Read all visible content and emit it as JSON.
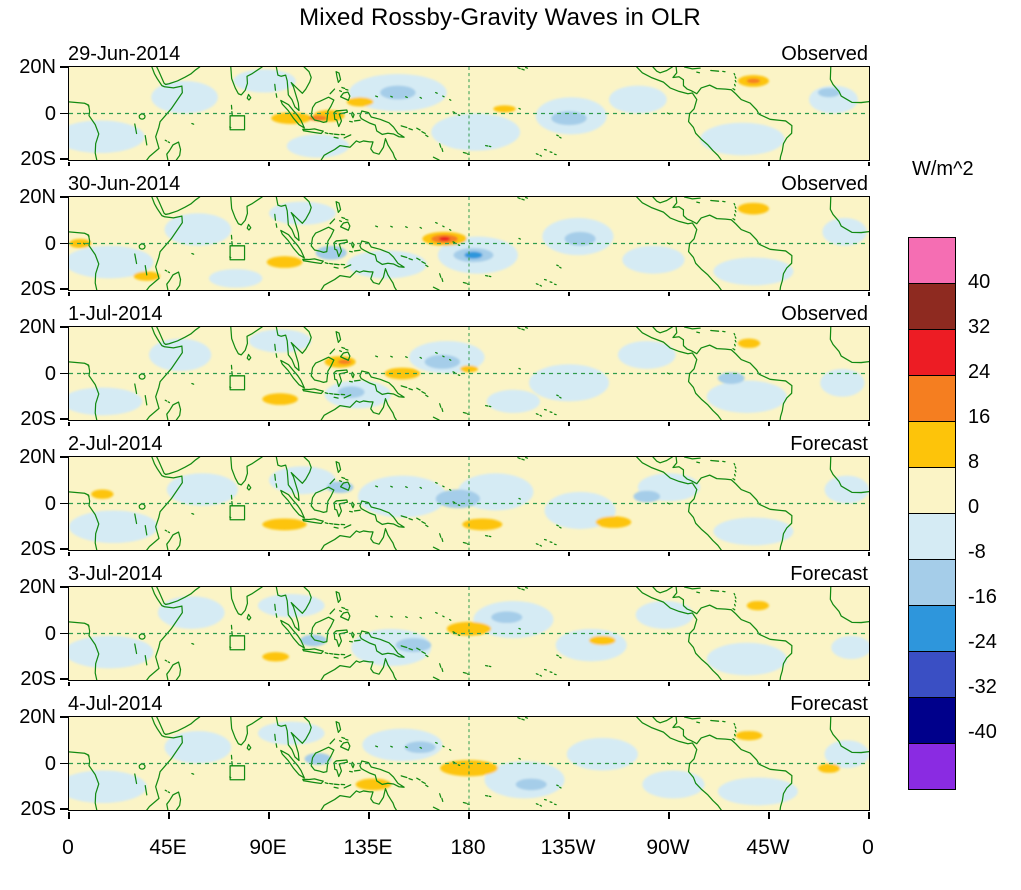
{
  "chart_data": {
    "type": "heatmap",
    "title": "Mixed Rossby-Gravity Waves in OLR",
    "x_axis": {
      "labels": [
        "0",
        "45E",
        "90E",
        "135E",
        "180",
        "135W",
        "90W",
        "45W",
        "0"
      ],
      "lon_range": [
        0,
        360
      ]
    },
    "y_axis": {
      "labels": [
        "20N",
        "0",
        "20S"
      ],
      "lat_range": [
        20,
        -20
      ]
    },
    "colorbar": {
      "units_label": "W/m^2",
      "tick_labels": [
        "40",
        "32",
        "24",
        "16",
        "8",
        "0",
        "-8",
        "-16",
        "-24",
        "-32",
        "-40"
      ],
      "thresholds": [
        -40,
        -32,
        -24,
        -16,
        -8,
        0,
        8,
        16,
        24,
        32,
        40
      ],
      "band_colors_low_to_high": [
        "#8A2BE2",
        "#00008B",
        "#3A4FC4",
        "#2E96DC",
        "#A5CDE9",
        "#D5EBF4",
        "#FBF4C6",
        "#FDC40A",
        "#F57E20",
        "#ED1C24",
        "#8E2A20",
        "#F56EB3"
      ]
    },
    "map_style": {
      "coast_color": "#128A12",
      "equator_color": "#2E9B4E",
      "grid_dashed": true,
      "reference_meridian": 180
    },
    "panels": [
      {
        "date": "29-Jun-2014",
        "kind": "Observed",
        "blobs_lon_lat_rx_ry_value": [
          [
            14,
            -10,
            20,
            7,
            -4
          ],
          [
            52,
            7,
            15,
            7,
            -4
          ],
          [
            88,
            14,
            14,
            5,
            -4
          ],
          [
            112,
            -14,
            14,
            5,
            -4
          ],
          [
            148,
            9,
            22,
            8,
            -4
          ],
          [
            183,
            -8,
            20,
            8,
            -4
          ],
          [
            226,
            -1,
            16,
            8,
            -4
          ],
          [
            256,
            6,
            13,
            6,
            -4
          ],
          [
            303,
            -11,
            19,
            7,
            -4
          ],
          [
            344,
            6,
            11,
            6,
            -4
          ],
          [
            148,
            9,
            8,
            3,
            -12
          ],
          [
            225,
            -2,
            8,
            3,
            -12
          ],
          [
            342,
            9,
            5,
            2,
            -12
          ],
          [
            100,
            -2,
            9,
            2.5,
            12
          ],
          [
            117,
            -1,
            7,
            2.5,
            12
          ],
          [
            131,
            5,
            6,
            2,
            12
          ],
          [
            196,
            2,
            5,
            1.5,
            12
          ],
          [
            308,
            14,
            7,
            2.5,
            12
          ],
          [
            112,
            -2,
            4,
            1.2,
            20
          ],
          [
            308,
            14,
            3,
            1,
            20
          ]
        ]
      },
      {
        "date": "30-Jun-2014",
        "kind": "Observed",
        "blobs_lon_lat_rx_ry_value": [
          [
            18,
            -8,
            20,
            7,
            -4
          ],
          [
            58,
            6,
            15,
            7,
            -4
          ],
          [
            75,
            -15,
            12,
            4,
            -4
          ],
          [
            105,
            13,
            15,
            5,
            -4
          ],
          [
            143,
            -9,
            18,
            6,
            -4
          ],
          [
            184,
            -5,
            18,
            8,
            -4
          ],
          [
            229,
            3,
            16,
            8,
            -4
          ],
          [
            263,
            -7,
            14,
            6,
            -4
          ],
          [
            308,
            -12,
            18,
            6,
            -4
          ],
          [
            349,
            5,
            10,
            6,
            -4
          ],
          [
            182,
            -5,
            9,
            3,
            -12
          ],
          [
            118,
            -4,
            7,
            3,
            -12
          ],
          [
            230,
            2,
            7,
            3,
            -12
          ],
          [
            182,
            -5,
            4,
            1.5,
            -20
          ],
          [
            169,
            2,
            10,
            3,
            12
          ],
          [
            97,
            -8,
            8,
            2.5,
            12
          ],
          [
            308,
            15,
            7,
            2.5,
            12
          ],
          [
            35,
            -14,
            6,
            2,
            12
          ],
          [
            5,
            0,
            5,
            2,
            12
          ],
          [
            169,
            2,
            6,
            1.8,
            20
          ],
          [
            169,
            2,
            2.5,
            0.9,
            28
          ]
        ]
      },
      {
        "date": "1-Jul-2014",
        "kind": "Observed",
        "blobs_lon_lat_rx_ry_value": [
          [
            15,
            -12,
            18,
            6,
            -4
          ],
          [
            50,
            8,
            14,
            7,
            -4
          ],
          [
            95,
            14,
            14,
            5,
            -4
          ],
          [
            130,
            -9,
            15,
            6,
            -4
          ],
          [
            170,
            7,
            17,
            7,
            -4
          ],
          [
            200,
            -12,
            12,
            5,
            -4
          ],
          [
            225,
            -4,
            18,
            8,
            -4
          ],
          [
            260,
            8,
            13,
            6,
            -4
          ],
          [
            305,
            -10,
            18,
            7,
            -4
          ],
          [
            348,
            -4,
            10,
            6,
            -4
          ],
          [
            168,
            5,
            8,
            3,
            -12
          ],
          [
            127,
            -8,
            6,
            2.5,
            -12
          ],
          [
            298,
            -2,
            6,
            2.5,
            -12
          ],
          [
            122,
            5,
            7,
            2.5,
            12
          ],
          [
            150,
            0,
            8,
            2.5,
            12
          ],
          [
            95,
            -11,
            8,
            2.5,
            12
          ],
          [
            306,
            13,
            5,
            2,
            12
          ],
          [
            180,
            2,
            4,
            1.5,
            12
          ],
          [
            124,
            5,
            3,
            1,
            20
          ]
        ]
      },
      {
        "date": "2-Jul-2014",
        "kind": "Forecast",
        "blobs_lon_lat_rx_ry_value": [
          [
            20,
            -10,
            20,
            7,
            -4
          ],
          [
            60,
            6,
            16,
            7,
            -4
          ],
          [
            105,
            10,
            15,
            6,
            -4
          ],
          [
            150,
            3,
            20,
            9,
            -4
          ],
          [
            192,
            5,
            17,
            8,
            -4
          ],
          [
            230,
            -3,
            16,
            8,
            -4
          ],
          [
            270,
            7,
            14,
            6,
            -4
          ],
          [
            308,
            -12,
            18,
            6,
            -4
          ],
          [
            350,
            6,
            10,
            6,
            -4
          ],
          [
            175,
            2,
            10,
            4,
            -12
          ],
          [
            122,
            7,
            6,
            2.5,
            -12
          ],
          [
            260,
            3,
            6,
            2.5,
            -12
          ],
          [
            186,
            -9,
            9,
            2.5,
            12
          ],
          [
            97,
            -9,
            10,
            2.5,
            12
          ],
          [
            245,
            -8,
            8,
            2.5,
            12
          ],
          [
            15,
            4,
            5,
            2,
            12
          ]
        ]
      },
      {
        "date": "3-Jul-2014",
        "kind": "Forecast",
        "blobs_lon_lat_rx_ry_value": [
          [
            18,
            -8,
            20,
            7,
            -4
          ],
          [
            55,
            9,
            15,
            7,
            -4
          ],
          [
            100,
            12,
            15,
            5,
            -4
          ],
          [
            145,
            -6,
            18,
            8,
            -4
          ],
          [
            200,
            6,
            18,
            8,
            -4
          ],
          [
            235,
            -5,
            16,
            7,
            -4
          ],
          [
            268,
            8,
            13,
            6,
            -4
          ],
          [
            305,
            -11,
            18,
            7,
            -4
          ],
          [
            352,
            -6,
            9,
            5,
            -4
          ],
          [
            155,
            -5,
            8,
            3,
            -12
          ],
          [
            197,
            7,
            7,
            2.5,
            -12
          ],
          [
            110,
            -3,
            6,
            2.5,
            -12
          ],
          [
            180,
            2,
            10,
            3,
            12
          ],
          [
            240,
            -3,
            6,
            2,
            12
          ],
          [
            93,
            -10,
            6,
            2,
            12
          ],
          [
            310,
            12,
            5,
            2,
            12
          ]
        ]
      },
      {
        "date": "4-Jul-2014",
        "kind": "Forecast",
        "blobs_lon_lat_rx_ry_value": [
          [
            15,
            -10,
            20,
            7,
            -4
          ],
          [
            58,
            7,
            15,
            7,
            -4
          ],
          [
            100,
            13,
            15,
            5,
            -4
          ],
          [
            150,
            8,
            18,
            7,
            -4
          ],
          [
            205,
            -7,
            18,
            8,
            -4
          ],
          [
            240,
            4,
            16,
            7,
            -4
          ],
          [
            272,
            -9,
            14,
            6,
            -4
          ],
          [
            310,
            -12,
            18,
            6,
            -4
          ],
          [
            350,
            4,
            10,
            6,
            -4
          ],
          [
            158,
            7,
            7,
            2.5,
            -12
          ],
          [
            208,
            -9,
            7,
            2.5,
            -12
          ],
          [
            112,
            2,
            6,
            2.5,
            -12
          ],
          [
            180,
            -2,
            13,
            3.5,
            12
          ],
          [
            137,
            -9,
            8,
            2.5,
            12
          ],
          [
            306,
            12,
            6,
            2,
            12
          ],
          [
            342,
            -2,
            5,
            2,
            12
          ]
        ]
      }
    ]
  }
}
